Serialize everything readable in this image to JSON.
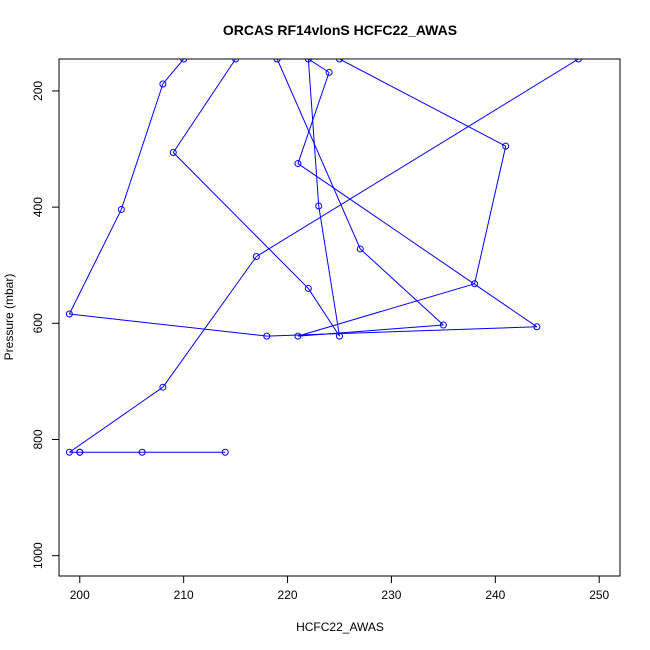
{
  "chart_data": {
    "type": "line",
    "title": "ORCAS RF14vlonS HCFC22_AWAS",
    "xlabel": "HCFC22_AWAS",
    "ylabel": "Pressure (mbar)",
    "xlim": [
      198,
      252
    ],
    "ylim": [
      1035,
      145
    ],
    "y_axis_inverted": true,
    "x_ticks": [
      200,
      210,
      220,
      230,
      240,
      250
    ],
    "y_ticks": [
      200,
      400,
      600,
      800,
      1000
    ],
    "grid": false,
    "legend": "none",
    "series": [
      {
        "color": "#0000ff",
        "marker": "open-circle",
        "points": [
          {
            "x": 214,
            "y": 822
          },
          {
            "x": 206,
            "y": 822
          },
          {
            "x": 200,
            "y": 822
          },
          {
            "x": 200,
            "y": 822
          },
          {
            "x": 199,
            "y": 822
          },
          {
            "x": 208,
            "y": 710
          },
          {
            "x": 217,
            "y": 485
          },
          {
            "x": 248,
            "y": 145
          },
          {
            "x": 225,
            "y": 145
          },
          {
            "x": 241,
            "y": 295
          },
          {
            "x": 238,
            "y": 532
          },
          {
            "x": 221,
            "y": 622
          },
          {
            "x": 235,
            "y": 603
          },
          {
            "x": 227,
            "y": 472
          },
          {
            "x": 219,
            "y": 145
          },
          {
            "x": 215,
            "y": 145
          },
          {
            "x": 209,
            "y": 306
          },
          {
            "x": 222,
            "y": 540
          },
          {
            "x": 225,
            "y": 622
          },
          {
            "x": 223,
            "y": 398
          },
          {
            "x": 222,
            "y": 145
          },
          {
            "x": 224,
            "y": 168
          },
          {
            "x": 221,
            "y": 325
          },
          {
            "x": 244,
            "y": 606
          },
          {
            "x": 218,
            "y": 622
          },
          {
            "x": 199,
            "y": 584
          },
          {
            "x": 204,
            "y": 404
          },
          {
            "x": 208,
            "y": 188
          },
          {
            "x": 210,
            "y": 145
          }
        ]
      }
    ]
  }
}
